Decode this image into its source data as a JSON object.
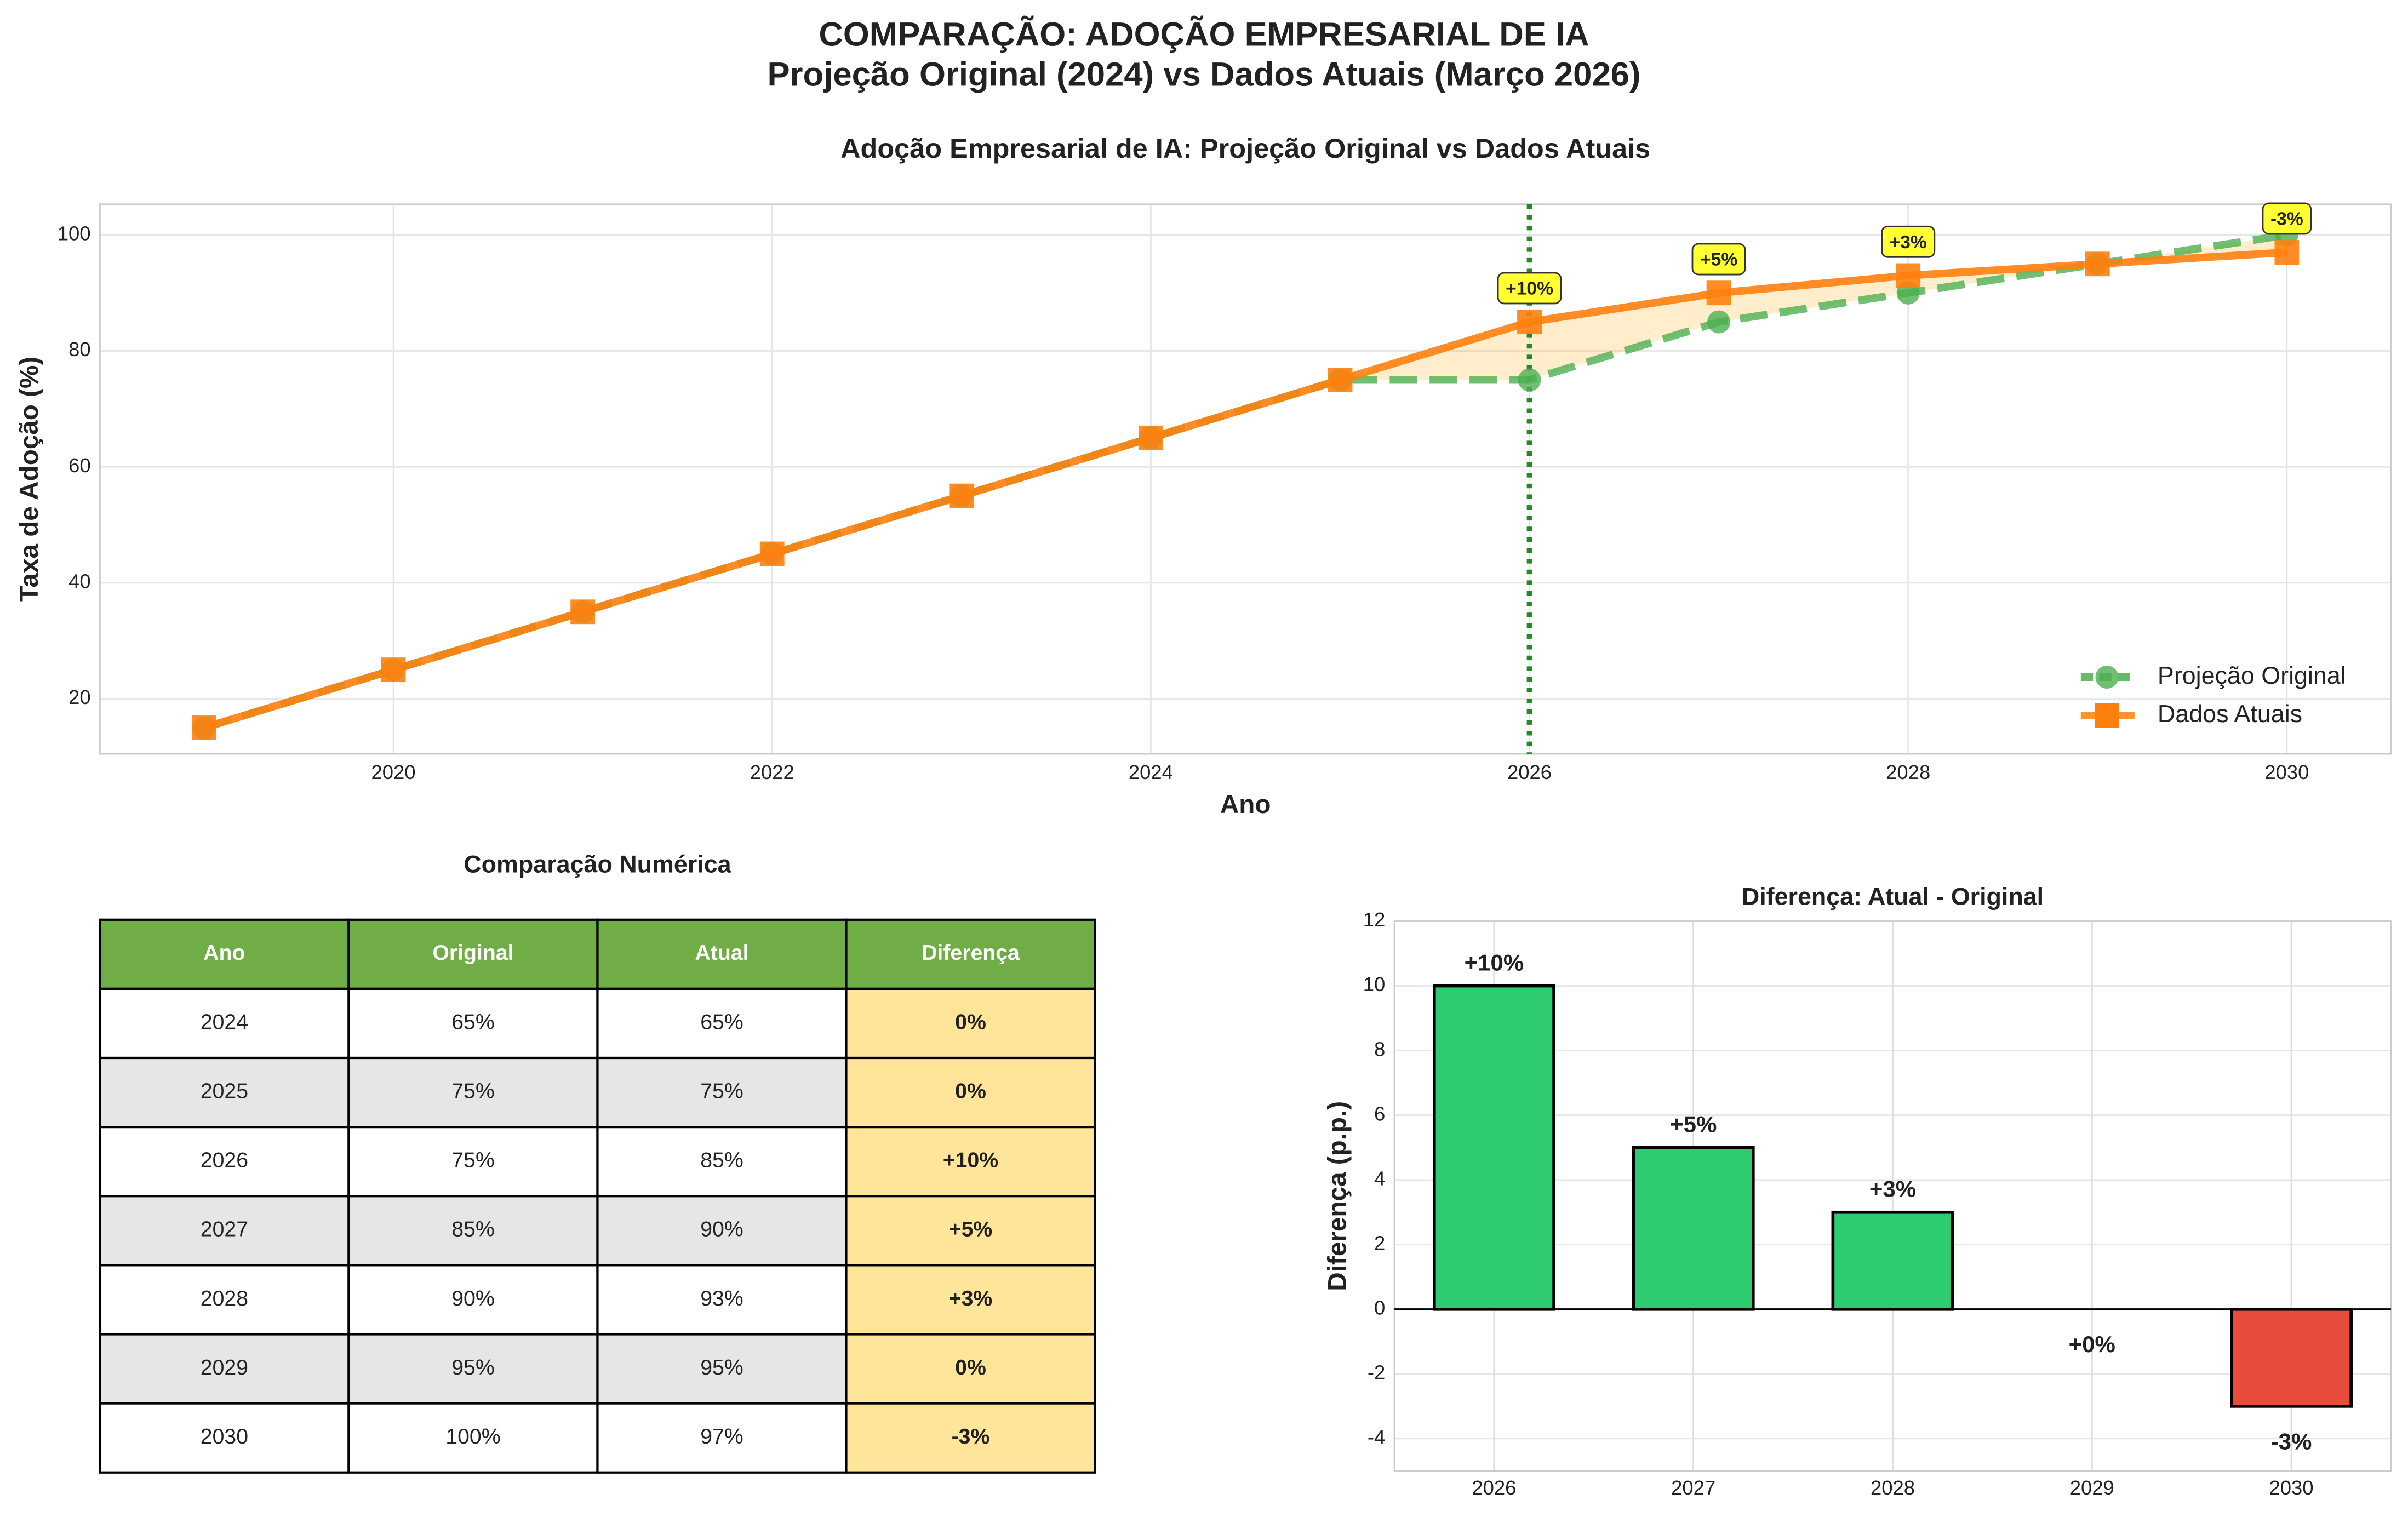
{
  "title": "COMPARAÇÃO: ADOÇÃO EMPRESARIAL DE IA",
  "subtitle": "Projeção Original (2024) vs Dados Atuais (Março 2026)",
  "chart_data": [
    {
      "type": "line",
      "title": "Adoção Empresarial de IA: Projeção Original vs Dados Atuais",
      "x_label": "Ano",
      "y_label": "Taxa de Adoção (%)",
      "x": [
        2019,
        2020,
        2021,
        2022,
        2023,
        2024,
        2025,
        2026,
        2027,
        2028,
        2029,
        2030
      ],
      "series": [
        {
          "name": "Projeção Original",
          "color": "#4caf50",
          "values": [
            15,
            25,
            35,
            45,
            55,
            65,
            75,
            75,
            85,
            90,
            95,
            100
          ]
        },
        {
          "name": "Dados Atuais",
          "color": "#ff7f0e",
          "values": [
            15,
            25,
            35,
            45,
            55,
            65,
            75,
            85,
            90,
            93,
            95,
            97
          ]
        }
      ],
      "vline": 2026,
      "vline_color": "#228b22",
      "annotations": [
        {
          "x": 2026,
          "text": "+10%"
        },
        {
          "x": 2027,
          "text": "+5%"
        },
        {
          "x": 2028,
          "text": "+3%"
        },
        {
          "x": 2030,
          "text": "-3%"
        }
      ],
      "xlim": [
        2018.45,
        2030.55
      ],
      "ylim": [
        10.5,
        105.3
      ],
      "xticks": [
        2020,
        2022,
        2024,
        2026,
        2028,
        2030
      ],
      "yticks": [
        20,
        40,
        60,
        80,
        100
      ],
      "grid": true,
      "legend": "lower right"
    },
    {
      "type": "bar",
      "title": "Diferença: Atual - Original",
      "y_label": "Diferença (p.p.)",
      "categories": [
        "2026",
        "2027",
        "2028",
        "2029",
        "2030"
      ],
      "values": [
        10,
        5,
        3,
        0,
        -3
      ],
      "value_labels": [
        "+10%",
        "+5%",
        "+3%",
        "+0%",
        "-3%"
      ],
      "colors": [
        "#2ecc71",
        "#2ecc71",
        "#2ecc71",
        "#2ecc71",
        "#e74c3c"
      ],
      "ylim": [
        -5,
        12
      ],
      "yticks": [
        -4,
        -2,
        0,
        2,
        4,
        6,
        8,
        10,
        12
      ],
      "grid": true
    }
  ],
  "table": {
    "title": "Comparação Numérica",
    "header": [
      "Ano",
      "Original",
      "Atual",
      "Diferença"
    ],
    "rows": [
      [
        "2024",
        "65%",
        "65%",
        "0%"
      ],
      [
        "2025",
        "75%",
        "75%",
        "0%"
      ],
      [
        "2026",
        "75%",
        "85%",
        "+10%"
      ],
      [
        "2027",
        "85%",
        "90%",
        "+5%"
      ],
      [
        "2028",
        "90%",
        "93%",
        "+3%"
      ],
      [
        "2029",
        "95%",
        "95%",
        "0%"
      ],
      [
        "2030",
        "100%",
        "97%",
        "-3%"
      ]
    ]
  }
}
